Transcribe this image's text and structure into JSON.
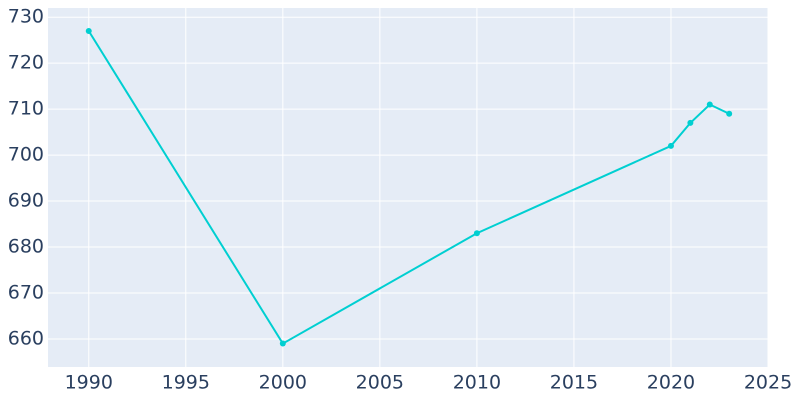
{
  "chart_data": {
    "type": "line",
    "x": [
      1990,
      2000,
      2010,
      2020,
      2021,
      2022,
      2023
    ],
    "series": [
      {
        "values": [
          727,
          659,
          683,
          702,
          707,
          711,
          709
        ],
        "color": "#00cfd1"
      }
    ],
    "xlim": [
      1987.9,
      2025
    ],
    "ylim": [
      653.9,
      732
    ],
    "xticks": [
      1990,
      1995,
      2000,
      2005,
      2010,
      2015,
      2020,
      2025
    ],
    "yticks": [
      660,
      670,
      680,
      690,
      700,
      710,
      720,
      730
    ],
    "grid": true,
    "background": "#e5ecf6"
  }
}
